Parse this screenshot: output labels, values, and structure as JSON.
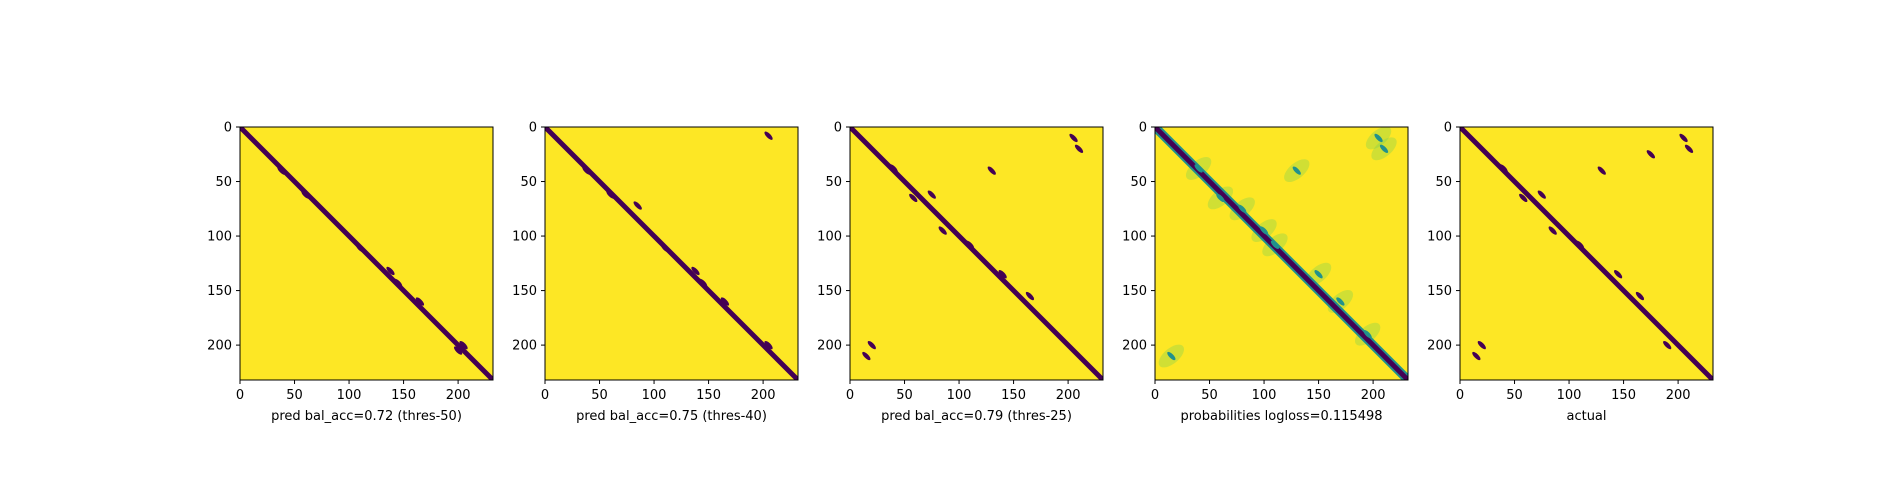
{
  "chart_data": [
    {
      "type": "heatmap",
      "title": "",
      "xlabel": "pred bal_acc=0.72 (thres-50)",
      "ylabel": "",
      "size": 232,
      "xlim": [
        0,
        232
      ],
      "ylim": [
        232,
        0
      ],
      "xticks": [
        0,
        50,
        100,
        150,
        200
      ],
      "yticks": [
        0,
        50,
        100,
        150,
        200
      ],
      "values": "binary",
      "colors": {
        "low": "#440154",
        "high": "#fde725"
      },
      "diagonal": {
        "from": [
          0,
          0
        ],
        "to": [
          232,
          232
        ]
      },
      "blobs": [
        [
          38,
          40
        ],
        [
          60,
          62
        ],
        [
          110,
          111
        ],
        [
          138,
          132
        ],
        [
          145,
          143
        ],
        [
          165,
          160
        ],
        [
          200,
          205
        ],
        [
          205,
          200
        ]
      ]
    },
    {
      "type": "heatmap",
      "title": "",
      "xlabel": "pred bal_acc=0.75 (thres-40)",
      "ylabel": "",
      "size": 232,
      "xlim": [
        0,
        232
      ],
      "ylim": [
        232,
        0
      ],
      "xticks": [
        0,
        50,
        100,
        150,
        200
      ],
      "yticks": [
        0,
        50,
        100,
        150,
        200
      ],
      "values": "binary",
      "colors": {
        "low": "#440154",
        "high": "#fde725"
      },
      "diagonal": {
        "from": [
          0,
          0
        ],
        "to": [
          232,
          232
        ]
      },
      "blobs": [
        [
          38,
          40
        ],
        [
          60,
          62
        ],
        [
          85,
          72
        ],
        [
          110,
          111
        ],
        [
          138,
          132
        ],
        [
          145,
          143
        ],
        [
          165,
          160
        ],
        [
          205,
          8
        ],
        [
          205,
          200
        ]
      ]
    },
    {
      "type": "heatmap",
      "title": "",
      "xlabel": "pred bal_acc=0.79 (thres-25)",
      "ylabel": "",
      "size": 232,
      "xlim": [
        0,
        232
      ],
      "ylim": [
        232,
        0
      ],
      "xticks": [
        0,
        50,
        100,
        150,
        200
      ],
      "yticks": [
        0,
        50,
        100,
        150,
        200
      ],
      "values": "binary",
      "colors": {
        "low": "#440154",
        "high": "#fde725"
      },
      "diagonal": {
        "from": [
          0,
          0
        ],
        "to": [
          232,
          232
        ]
      },
      "blobs": [
        [
          40,
          38
        ],
        [
          58,
          65
        ],
        [
          75,
          62
        ],
        [
          85,
          95
        ],
        [
          110,
          108
        ],
        [
          130,
          40
        ],
        [
          140,
          135
        ],
        [
          165,
          155
        ],
        [
          205,
          10
        ],
        [
          210,
          20
        ],
        [
          15,
          210
        ],
        [
          20,
          200
        ]
      ]
    },
    {
      "type": "heatmap",
      "title": "",
      "xlabel": "probabilities logloss=0.115498",
      "ylabel": "",
      "size": 232,
      "xlim": [
        0,
        232
      ],
      "ylim": [
        232,
        0
      ],
      "xticks": [
        0,
        50,
        100,
        150,
        200
      ],
      "yticks": [
        0,
        50,
        100,
        150,
        200
      ],
      "values": "continuous",
      "colors": {
        "low": "#440154",
        "mid": "#21918c",
        "high": "#fde725"
      },
      "diagonal": {
        "from": [
          0,
          0
        ],
        "to": [
          232,
          232
        ]
      },
      "blobs": [
        [
          40,
          38
        ],
        [
          60,
          65
        ],
        [
          80,
          75
        ],
        [
          100,
          95
        ],
        [
          110,
          108
        ],
        [
          130,
          40
        ],
        [
          150,
          135
        ],
        [
          170,
          160
        ],
        [
          205,
          10
        ],
        [
          210,
          20
        ],
        [
          15,
          210
        ],
        [
          195,
          190
        ]
      ]
    },
    {
      "type": "heatmap",
      "title": "",
      "xlabel": "actual",
      "ylabel": "",
      "size": 232,
      "xlim": [
        0,
        232
      ],
      "ylim": [
        232,
        0
      ],
      "xticks": [
        0,
        50,
        100,
        150,
        200
      ],
      "yticks": [
        0,
        50,
        100,
        150,
        200
      ],
      "values": "binary",
      "colors": {
        "low": "#440154",
        "high": "#fde725"
      },
      "diagonal": {
        "from": [
          0,
          0
        ],
        "to": [
          232,
          232
        ]
      },
      "blobs": [
        [
          40,
          38
        ],
        [
          58,
          65
        ],
        [
          75,
          62
        ],
        [
          85,
          95
        ],
        [
          110,
          108
        ],
        [
          130,
          40
        ],
        [
          145,
          135
        ],
        [
          165,
          155
        ],
        [
          175,
          25
        ],
        [
          205,
          10
        ],
        [
          210,
          20
        ],
        [
          15,
          210
        ],
        [
          20,
          200
        ],
        [
          190,
          200
        ]
      ]
    }
  ]
}
